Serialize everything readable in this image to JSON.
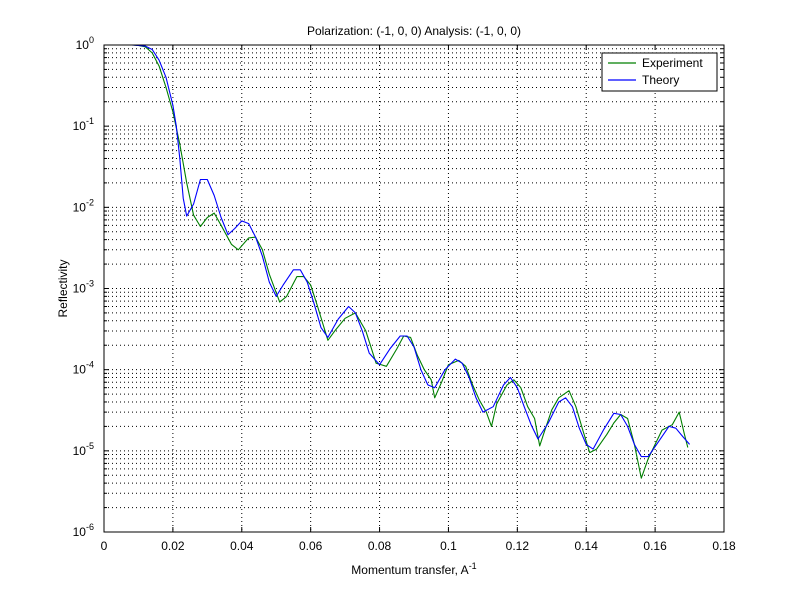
{
  "chart_data": {
    "type": "line",
    "title": "Polarization: (-1, 0, 0) Analysis: (-1, 0, 0)",
    "xlabel": "Momentum transfer, A",
    "xlabel_superscript": "-1",
    "ylabel": "Reflectivity",
    "xlim": [
      0,
      0.18
    ],
    "ylim": [
      1e-06,
      1
    ],
    "yscale": "log",
    "grid": true,
    "legend_position": "top-right",
    "x_ticks": [
      "0",
      "0.02",
      "0.04",
      "0.06",
      "0.08",
      "0.1",
      "0.12",
      "0.14",
      "0.16",
      "0.18"
    ],
    "y_tick_exponents": [
      "0",
      "-1",
      "-2",
      "-3",
      "-4",
      "-5",
      "-6"
    ],
    "y_tick_base": "10",
    "series": [
      {
        "name": "Experiment",
        "color": "#007f00",
        "points": [
          [
            0.0085,
            1.0
          ],
          [
            0.01,
            0.99
          ],
          [
            0.012,
            0.95
          ],
          [
            0.014,
            0.8
          ],
          [
            0.016,
            0.55
          ],
          [
            0.018,
            0.3
          ],
          [
            0.02,
            0.15
          ],
          [
            0.022,
            0.06
          ],
          [
            0.024,
            0.02
          ],
          [
            0.026,
            0.008
          ],
          [
            0.028,
            0.0058
          ],
          [
            0.03,
            0.0075
          ],
          [
            0.032,
            0.0085
          ],
          [
            0.034,
            0.006
          ],
          [
            0.037,
            0.0035
          ],
          [
            0.039,
            0.003
          ],
          [
            0.042,
            0.0042
          ],
          [
            0.044,
            0.0043
          ],
          [
            0.046,
            0.003
          ],
          [
            0.048,
            0.0015
          ],
          [
            0.051,
            0.00068
          ],
          [
            0.053,
            0.0008
          ],
          [
            0.056,
            0.0014
          ],
          [
            0.058,
            0.0014
          ],
          [
            0.06,
            0.0011
          ],
          [
            0.062,
            0.0006
          ],
          [
            0.065,
            0.00023
          ],
          [
            0.067,
            0.0003
          ],
          [
            0.07,
            0.00043
          ],
          [
            0.073,
            0.0005
          ],
          [
            0.076,
            0.0003
          ],
          [
            0.079,
            0.00012
          ],
          [
            0.082,
            0.00011
          ],
          [
            0.085,
            0.00018
          ],
          [
            0.087,
            0.00026
          ],
          [
            0.089,
            0.00025
          ],
          [
            0.091,
            0.00015
          ],
          [
            0.093,
            0.0001
          ],
          [
            0.095,
            7.5e-05
          ],
          [
            0.096,
            4.5e-05
          ],
          [
            0.098,
            7e-05
          ],
          [
            0.1,
            0.000115
          ],
          [
            0.103,
            0.00013
          ],
          [
            0.105,
            0.00011
          ],
          [
            0.107,
            6.5e-05
          ],
          [
            0.109,
            4.2e-05
          ],
          [
            0.111,
            3e-05
          ],
          [
            0.1125,
            2e-05
          ],
          [
            0.114,
            3.8e-05
          ],
          [
            0.117,
            6.5e-05
          ],
          [
            0.119,
            7.5e-05
          ],
          [
            0.121,
            6e-05
          ],
          [
            0.123,
            3.5e-05
          ],
          [
            0.125,
            2.5e-05
          ],
          [
            0.1265,
            1.15e-05
          ],
          [
            0.128,
            1.8e-05
          ],
          [
            0.13,
            3.2e-05
          ],
          [
            0.132,
            4.5e-05
          ],
          [
            0.135,
            5.5e-05
          ],
          [
            0.137,
            3.5e-05
          ],
          [
            0.139,
            1.8e-05
          ],
          [
            0.141,
            9.5e-06
          ],
          [
            0.143,
            1.05e-05
          ],
          [
            0.146,
            1.6e-05
          ],
          [
            0.148,
            2.2e-05
          ],
          [
            0.15,
            2.8e-05
          ],
          [
            0.152,
            2.5e-05
          ],
          [
            0.154,
            1.2e-05
          ],
          [
            0.156,
            4.6e-06
          ],
          [
            0.158,
            8e-06
          ],
          [
            0.16,
            1.2e-05
          ],
          [
            0.162,
            1.8e-05
          ],
          [
            0.165,
            2.1e-05
          ],
          [
            0.167,
            3e-05
          ],
          [
            0.1685,
            1.6e-05
          ],
          [
            0.1695,
            1.1e-05
          ]
        ]
      },
      {
        "name": "Theory",
        "color": "#0000ff",
        "points": [
          [
            0.008,
            1.0
          ],
          [
            0.01,
            0.99
          ],
          [
            0.012,
            0.97
          ],
          [
            0.014,
            0.88
          ],
          [
            0.016,
            0.65
          ],
          [
            0.018,
            0.4
          ],
          [
            0.02,
            0.18
          ],
          [
            0.021,
            0.1
          ],
          [
            0.022,
            0.04
          ],
          [
            0.023,
            0.013
          ],
          [
            0.024,
            0.0078
          ],
          [
            0.026,
            0.011
          ],
          [
            0.028,
            0.022
          ],
          [
            0.03,
            0.022
          ],
          [
            0.032,
            0.014
          ],
          [
            0.034,
            0.0075
          ],
          [
            0.036,
            0.0046
          ],
          [
            0.038,
            0.0055
          ],
          [
            0.04,
            0.0068
          ],
          [
            0.042,
            0.0063
          ],
          [
            0.044,
            0.0043
          ],
          [
            0.046,
            0.0025
          ],
          [
            0.048,
            0.0012
          ],
          [
            0.05,
            0.0008
          ],
          [
            0.052,
            0.0011
          ],
          [
            0.055,
            0.0017
          ],
          [
            0.057,
            0.0017
          ],
          [
            0.059,
            0.0012
          ],
          [
            0.061,
            0.00065
          ],
          [
            0.063,
            0.00033
          ],
          [
            0.065,
            0.00025
          ],
          [
            0.068,
            0.00042
          ],
          [
            0.071,
            0.0006
          ],
          [
            0.073,
            0.0005
          ],
          [
            0.075,
            0.0003
          ],
          [
            0.077,
            0.00016
          ],
          [
            0.08,
            0.000115
          ],
          [
            0.083,
            0.00018
          ],
          [
            0.086,
            0.00026
          ],
          [
            0.088,
            0.00026
          ],
          [
            0.09,
            0.00019
          ],
          [
            0.092,
            0.0001
          ],
          [
            0.094,
            6.5e-05
          ],
          [
            0.096,
            6e-05
          ],
          [
            0.099,
            0.0001
          ],
          [
            0.102,
            0.000135
          ],
          [
            0.104,
            0.00012
          ],
          [
            0.106,
            8e-05
          ],
          [
            0.108,
            4.5e-05
          ],
          [
            0.11,
            3e-05
          ],
          [
            0.113,
            3.5e-05
          ],
          [
            0.116,
            6.5e-05
          ],
          [
            0.118,
            8e-05
          ],
          [
            0.12,
            6e-05
          ],
          [
            0.122,
            3.5e-05
          ],
          [
            0.124,
            2.1e-05
          ],
          [
            0.126,
            1.4e-05
          ],
          [
            0.129,
            2.2e-05
          ],
          [
            0.132,
            4e-05
          ],
          [
            0.134,
            4.5e-05
          ],
          [
            0.136,
            3.5e-05
          ],
          [
            0.138,
            1.9e-05
          ],
          [
            0.14,
            1.2e-05
          ],
          [
            0.142,
            1.05e-05
          ],
          [
            0.145,
            1.8e-05
          ],
          [
            0.148,
            2.9e-05
          ],
          [
            0.15,
            2.8e-05
          ],
          [
            0.152,
            2e-05
          ],
          [
            0.154,
            1.2e-05
          ],
          [
            0.156,
            8.5e-06
          ],
          [
            0.158,
            8.5e-06
          ],
          [
            0.161,
            1.3e-05
          ],
          [
            0.164,
            2e-05
          ],
          [
            0.166,
            1.9e-05
          ],
          [
            0.168,
            1.5e-05
          ],
          [
            0.17,
            1.2e-05
          ]
        ]
      }
    ]
  }
}
